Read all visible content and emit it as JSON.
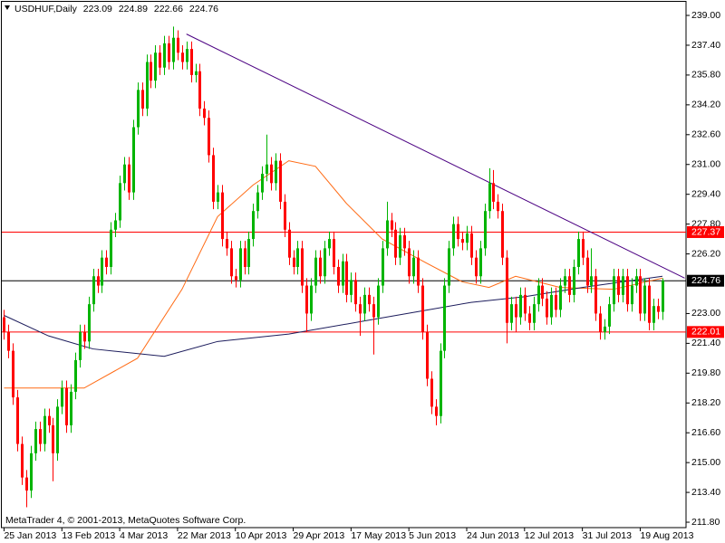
{
  "chart_data": {
    "type": "candlestick",
    "title": "USDHUF,Daily",
    "copyright": "MetaTrader 4, © 2001-2013, MetaQuotes Software Corp.",
    "xlim": [
      -0.5,
      153.3
    ],
    "ylim": [
      211.51,
      239.73
    ],
    "yticks": [
      {
        "value": 239,
        "label": "239.00"
      },
      {
        "value": 237.4,
        "label": "237.40"
      },
      {
        "value": 235.8,
        "label": "235.80"
      },
      {
        "value": 234.2,
        "label": "234.20"
      },
      {
        "value": 232.6,
        "label": "232.60"
      },
      {
        "value": 231,
        "label": "231.00"
      },
      {
        "value": 229.4,
        "label": "229.40"
      },
      {
        "value": 227.8,
        "label": "227.80"
      },
      {
        "value": 226.2,
        "label": "226.20"
      },
      {
        "value": 223,
        "label": "223.00"
      },
      {
        "value": 221.4,
        "label": "221.40"
      },
      {
        "value": 219.8,
        "label": "219.80"
      },
      {
        "value": 218.2,
        "label": "218.20"
      },
      {
        "value": 216.6,
        "label": "216.60"
      },
      {
        "value": 215,
        "label": "215.00"
      },
      {
        "value": 213.4,
        "label": "213.40"
      },
      {
        "value": 211.8,
        "label": "211.80"
      }
    ],
    "xticks": [
      {
        "value": 0,
        "label": "25 Jan 2013"
      },
      {
        "value": 13,
        "label": "13 Feb 2013"
      },
      {
        "value": 26,
        "label": "4 Mar 2013"
      },
      {
        "value": 39,
        "label": "22 Mar 2013"
      },
      {
        "value": 52,
        "label": "10 Apr 2013"
      },
      {
        "value": 65,
        "label": "29 Apr 2013"
      },
      {
        "value": 78,
        "label": "17 May 2013"
      },
      {
        "value": 91,
        "label": "5 Jun 2013"
      },
      {
        "value": 104,
        "label": "24 Jun 2013"
      },
      {
        "value": 117,
        "label": "12 Jul 2013"
      },
      {
        "value": 130,
        "label": "31 Jul 2013"
      },
      {
        "value": 143,
        "label": "19 Aug 2013"
      }
    ],
    "series": [
      {
        "up_color": "#00b400",
        "down_color": "#ff0000",
        "open": [
          222.8,
          222.0,
          221.0,
          218.5,
          216.0,
          214.2,
          213.5,
          215.5,
          216.8,
          216.0,
          217.5,
          217.0,
          215.5,
          218.0,
          219.0,
          217.0,
          218.8,
          220.5,
          222.0,
          221.5,
          223.5,
          225.0,
          224.5,
          226.0,
          225.5,
          227.5,
          228.0,
          230.0,
          231.0,
          229.5,
          233.0,
          235.0,
          234.0,
          236.5,
          235.5,
          237.0,
          236.2,
          237.5,
          236.5,
          237.8,
          237.0,
          236.5,
          237.2,
          235.8,
          236.0,
          234.0,
          233.5,
          231.5,
          229.0,
          229.5,
          227.0,
          226.5,
          225.0,
          224.8,
          226.5,
          225.5,
          227.0,
          228.5,
          229.5,
          230.5,
          231.0,
          230.0,
          231.2,
          229.0,
          227.5,
          226.0,
          225.5,
          226.5,
          224.5,
          223.0,
          224.5,
          226.0,
          225.0,
          226.5,
          227.0,
          225.5,
          224.5,
          225.8,
          224.0,
          224.8,
          223.5,
          223.0,
          224.0,
          223.5,
          222.8,
          224.5,
          226.5,
          228.0,
          227.5,
          226.0,
          227.2,
          226.5,
          225.0,
          226.0,
          224.5,
          222.0,
          219.5,
          218.0,
          217.5,
          221.0,
          224.5,
          226.5,
          227.8,
          227.0,
          226.8,
          227.3,
          226.0,
          225.0,
          226.5,
          228.5,
          230.0,
          229.0,
          228.5,
          226.0,
          222.5,
          223.5,
          222.8,
          224.0,
          223.0,
          222.5,
          223.5,
          224.5,
          223.8,
          222.8,
          224.0,
          223.2,
          224.5,
          225.0,
          224.0,
          225.5,
          227.0,
          226.0,
          224.5,
          225.0,
          223.0,
          222.0,
          222.3,
          223.5,
          225.0,
          224.0,
          225.0,
          223.5,
          224.5,
          225.0,
          223.0,
          224.5,
          222.5,
          223.4,
          223.09
        ],
        "high": [
          223.2,
          222.4,
          221.4,
          218.9,
          216.4,
          214.6,
          215.9,
          217.2,
          217.2,
          217.9,
          217.9,
          217.4,
          218.4,
          219.4,
          219.4,
          219.2,
          220.9,
          222.4,
          222.4,
          223.9,
          225.4,
          225.4,
          226.4,
          226.4,
          227.9,
          228.4,
          230.4,
          231.4,
          231.4,
          233.4,
          235.4,
          235.4,
          236.9,
          236.9,
          237.4,
          237.4,
          237.9,
          237.9,
          238.4,
          238.2,
          237.4,
          237.6,
          237.6,
          236.4,
          236.4,
          234.4,
          233.9,
          231.9,
          229.9,
          229.9,
          227.4,
          226.9,
          225.4,
          226.9,
          226.9,
          227.4,
          228.9,
          229.9,
          230.9,
          232.6,
          231.4,
          231.6,
          231.6,
          229.4,
          227.9,
          226.4,
          226.9,
          226.9,
          224.9,
          224.9,
          226.4,
          226.4,
          226.9,
          227.4,
          227.4,
          225.9,
          226.2,
          226.2,
          225.2,
          225.2,
          223.9,
          224.4,
          224.4,
          223.9,
          224.9,
          226.9,
          229.0,
          228.4,
          227.9,
          227.6,
          227.6,
          226.9,
          226.4,
          226.4,
          224.9,
          222.4,
          219.9,
          218.4,
          221.4,
          224.9,
          226.9,
          228.2,
          228.2,
          227.4,
          227.7,
          227.7,
          226.4,
          226.9,
          228.9,
          230.8,
          230.7,
          229.4,
          228.9,
          226.4,
          223.9,
          223.9,
          224.4,
          224.4,
          223.4,
          223.9,
          224.9,
          224.9,
          224.2,
          224.4,
          224.4,
          224.9,
          225.4,
          225.4,
          225.9,
          227.4,
          227.4,
          226.4,
          226.5,
          225.4,
          223.4,
          222.7,
          223.9,
          225.4,
          225.4,
          225.4,
          225.4,
          224.9,
          225.4,
          225.4,
          224.9,
          224.9,
          223.8,
          223.8,
          224.89
        ],
        "low": [
          221.6,
          220.6,
          218.1,
          215.6,
          213.8,
          212.6,
          213.1,
          215.1,
          215.6,
          215.6,
          216.6,
          214.0,
          215.1,
          217.6,
          216.6,
          216.6,
          218.4,
          220.1,
          221.1,
          221.1,
          223.1,
          224.1,
          224.1,
          225.1,
          225.1,
          227.1,
          227.6,
          229.6,
          229.1,
          229.1,
          232.6,
          233.6,
          233.6,
          235.1,
          235.1,
          235.8,
          235.8,
          236.1,
          236.1,
          236.6,
          236.1,
          236.1,
          235.4,
          235.4,
          233.6,
          233.1,
          231.1,
          228.6,
          228.6,
          226.6,
          226.1,
          224.6,
          224.4,
          224.4,
          225.1,
          225.1,
          226.6,
          228.1,
          229.1,
          230.1,
          229.6,
          229.6,
          228.6,
          227.1,
          225.6,
          225.1,
          225.1,
          224.1,
          222.0,
          222.6,
          224.1,
          224.6,
          224.6,
          226.1,
          225.1,
          224.1,
          224.1,
          223.6,
          223.6,
          223.1,
          221.8,
          222.6,
          223.1,
          220.8,
          222.4,
          224.1,
          226.1,
          227.1,
          225.6,
          225.6,
          226.1,
          224.6,
          224.6,
          224.1,
          221.6,
          219.1,
          217.6,
          217.0,
          217.1,
          220.6,
          224.1,
          226.1,
          226.6,
          226.4,
          226.4,
          225.6,
          224.6,
          224.6,
          226.1,
          228.1,
          228.6,
          228.1,
          225.6,
          221.4,
          222.1,
          222.0,
          222.4,
          222.6,
          222.1,
          222.1,
          223.1,
          223.4,
          222.4,
          222.4,
          222.8,
          222.8,
          224.1,
          223.6,
          223.6,
          225.1,
          225.6,
          224.1,
          224.1,
          222.6,
          221.6,
          221.6,
          221.9,
          223.1,
          223.6,
          223.6,
          223.1,
          223.1,
          224.1,
          222.6,
          222.6,
          222.1,
          222.1,
          222.7,
          222.66
        ],
        "close": [
          222.0,
          221.0,
          218.5,
          216.0,
          214.2,
          213.5,
          215.5,
          216.8,
          216.0,
          217.5,
          217.0,
          215.5,
          218.0,
          219.0,
          217.0,
          218.8,
          220.5,
          222.0,
          221.5,
          223.5,
          225.0,
          224.5,
          226.0,
          225.5,
          227.5,
          228.0,
          230.0,
          231.0,
          229.5,
          233.0,
          235.0,
          234.0,
          236.5,
          235.5,
          237.0,
          236.2,
          237.5,
          236.5,
          237.8,
          237.0,
          236.5,
          237.2,
          235.8,
          236.0,
          234.0,
          233.5,
          231.5,
          229.0,
          229.5,
          227.0,
          226.5,
          225.0,
          224.8,
          226.5,
          225.5,
          227.0,
          228.5,
          229.5,
          230.5,
          231.0,
          230.0,
          231.2,
          229.0,
          227.5,
          226.0,
          225.5,
          226.5,
          224.5,
          223.0,
          224.5,
          226.0,
          225.0,
          226.5,
          227.0,
          225.5,
          224.5,
          225.8,
          224.0,
          224.8,
          223.5,
          223.0,
          224.0,
          223.5,
          222.8,
          224.5,
          226.5,
          228.0,
          227.5,
          226.0,
          227.2,
          226.5,
          225.0,
          226.0,
          224.5,
          222.0,
          219.5,
          218.0,
          217.5,
          221.0,
          224.5,
          226.5,
          227.8,
          227.0,
          226.8,
          227.3,
          226.0,
          225.0,
          226.5,
          228.5,
          230.0,
          229.0,
          228.5,
          226.0,
          222.5,
          223.5,
          222.8,
          224.0,
          223.0,
          222.5,
          223.5,
          224.5,
          223.8,
          222.8,
          224.0,
          223.2,
          224.5,
          225.0,
          224.0,
          225.5,
          227.0,
          226.0,
          224.5,
          225.0,
          223.0,
          222.0,
          222.3,
          223.5,
          225.0,
          224.0,
          225.0,
          223.5,
          224.5,
          225.0,
          223.0,
          224.5,
          222.5,
          223.4,
          223.09,
          224.76
        ]
      }
    ],
    "lines": [
      {
        "color": "#ff6a13",
        "x": [
          0,
          18,
          30,
          40,
          48,
          56,
          64,
          70,
          77,
          85,
          95,
          103,
          109,
          115,
          125,
          137,
          148
        ],
        "values": [
          219.0,
          219.0,
          220.6,
          224.3,
          228.2,
          229.9,
          231.2,
          230.9,
          228.9,
          227.0,
          225.7,
          224.7,
          224.4,
          225.0,
          224.4,
          224.3,
          224.9
        ]
      },
      {
        "color": "#1c1c5c",
        "x": [
          0,
          10,
          20,
          36,
          48,
          64,
          81,
          93,
          105,
          117,
          130,
          142,
          148
        ],
        "values": [
          222.9,
          221.8,
          221.1,
          220.7,
          221.5,
          221.9,
          222.6,
          223.1,
          223.6,
          223.9,
          224.4,
          224.8,
          225.0
        ]
      },
      {
        "color": "#4b0082",
        "x": [
          41,
          153
        ],
        "values": [
          238.0,
          224.9
        ]
      }
    ],
    "hlines": [
      {
        "value": 227.37,
        "color": "#ff0000"
      },
      {
        "value": 224.76,
        "color": "#000000"
      },
      {
        "value": 222.01,
        "color": "#ff0000"
      }
    ]
  }
}
